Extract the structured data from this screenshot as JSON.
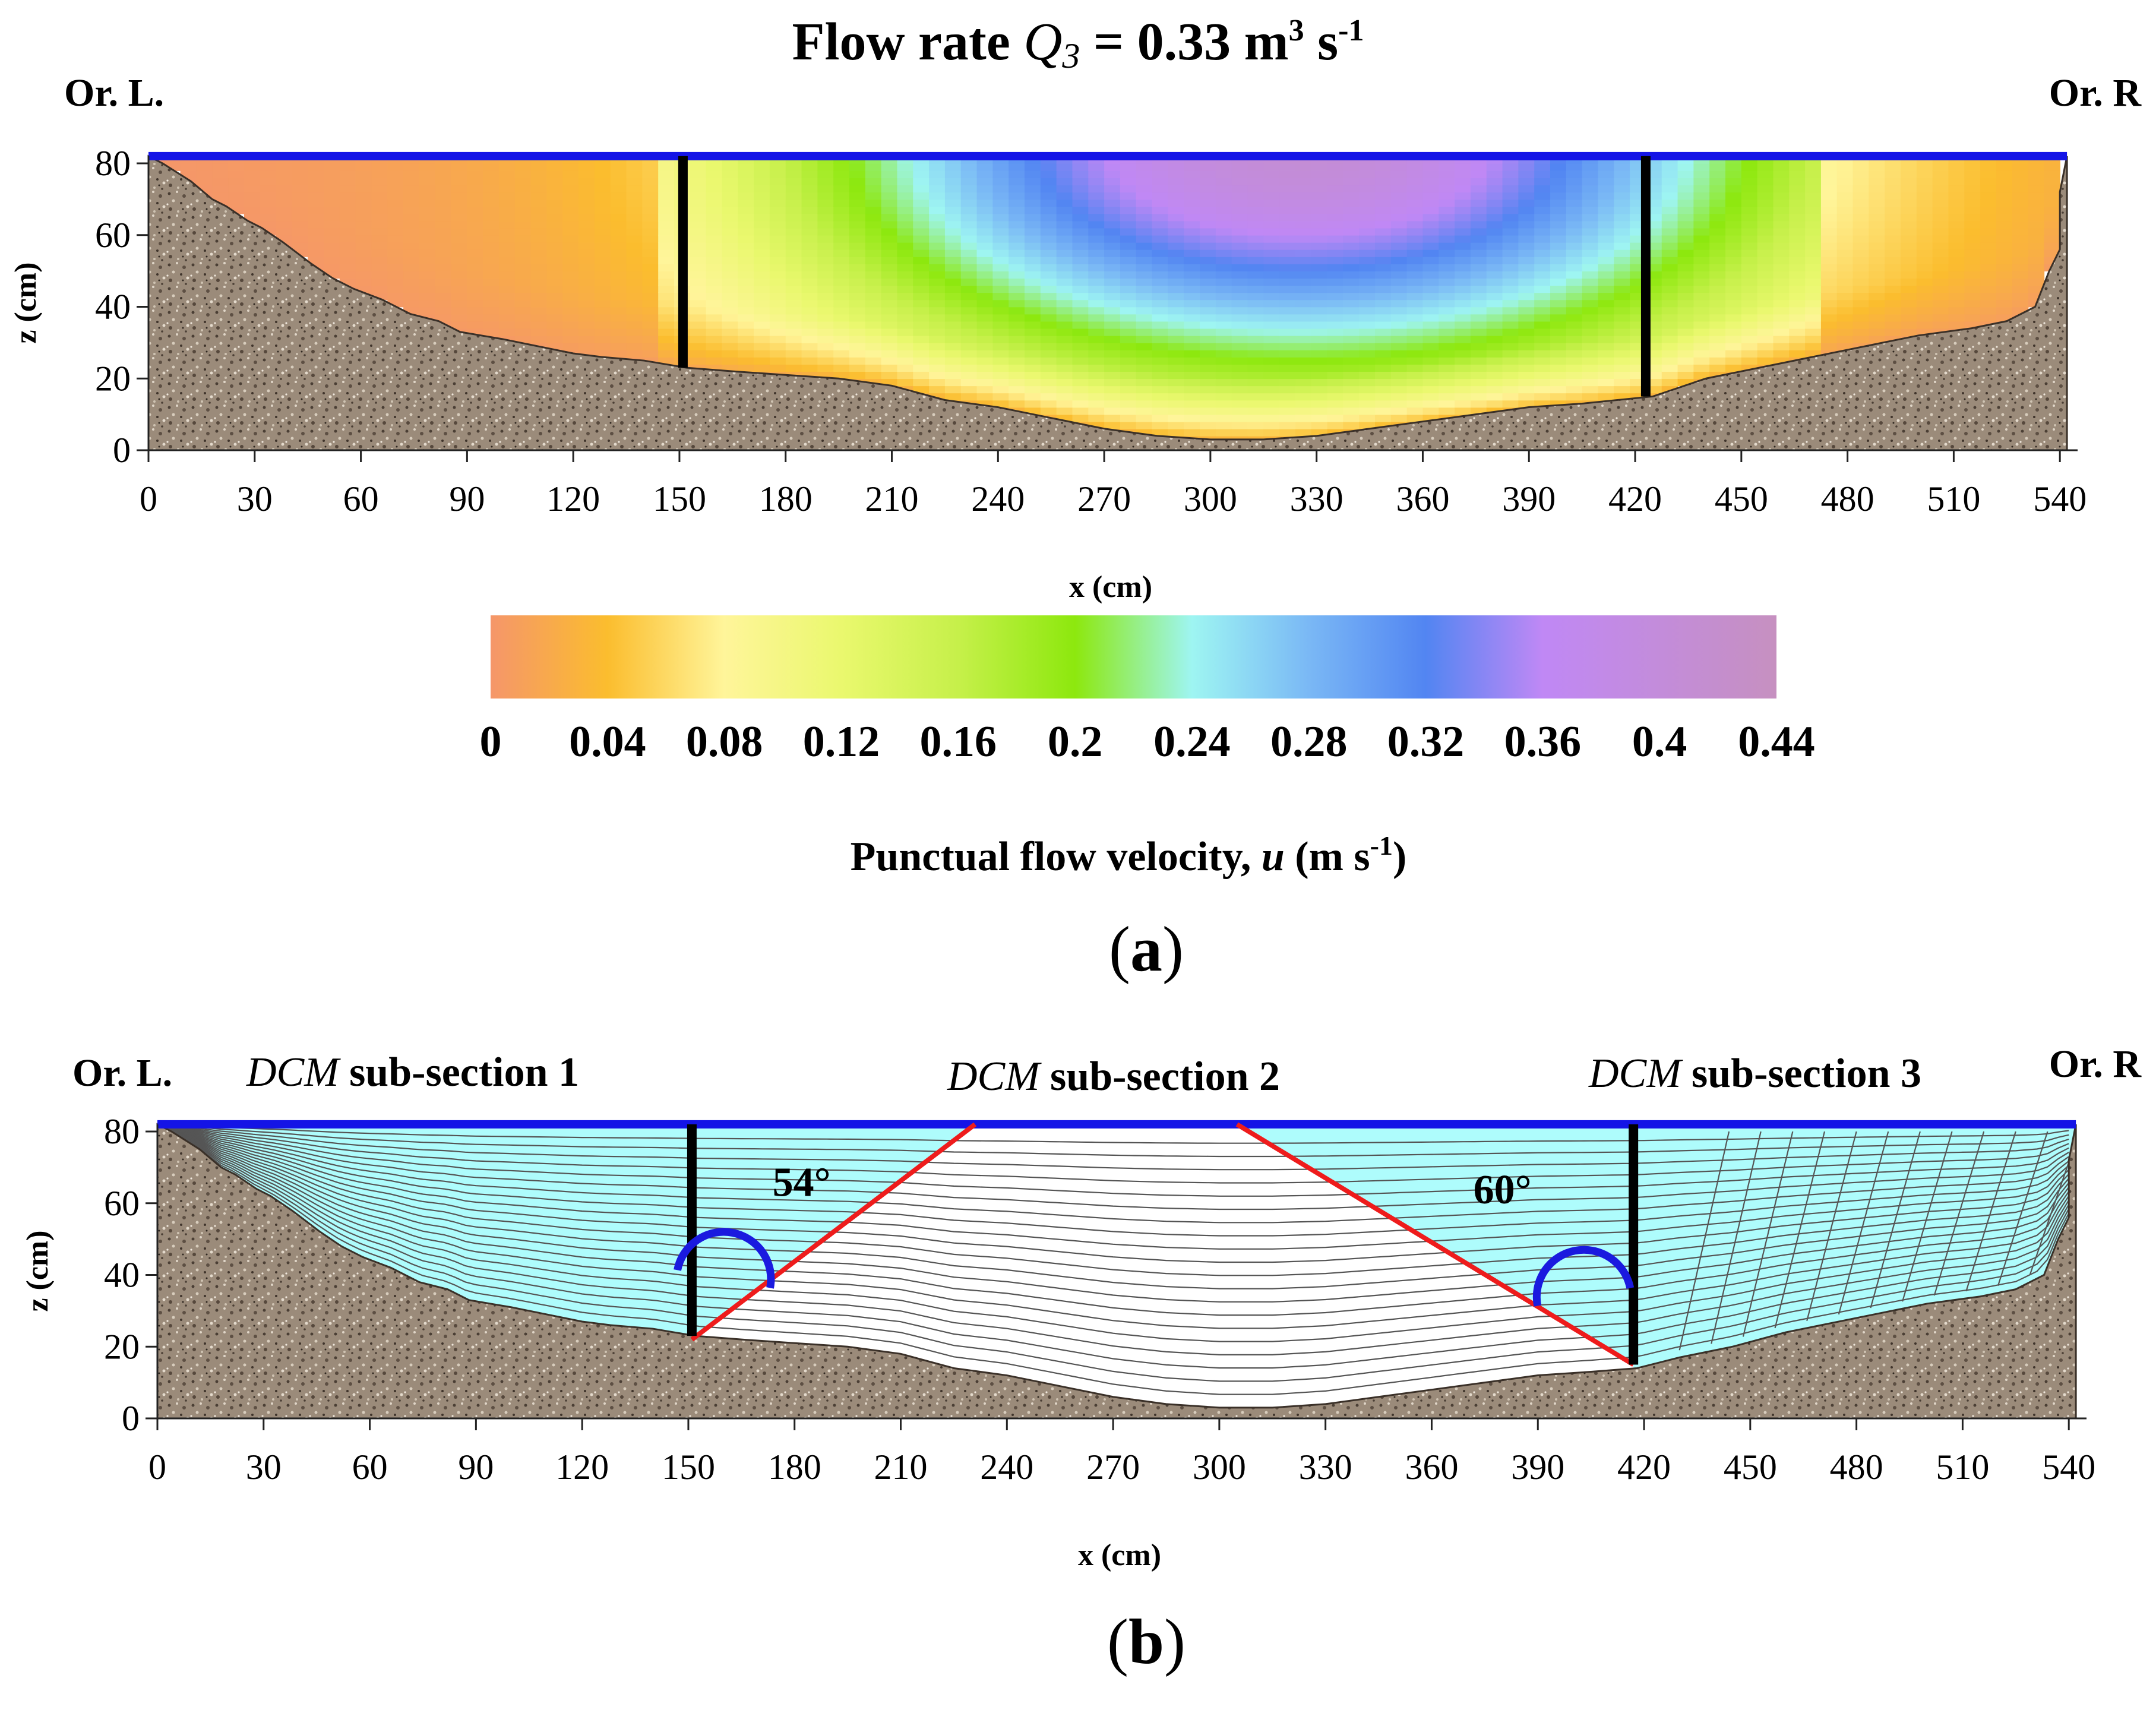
{
  "figure": {
    "title_prefix": "Flow rate ",
    "title_var": "Q",
    "title_sub": "3",
    "title_eq": " = 0.33",
    "title_unit_m": " m",
    "title_unit_m_exp": "3",
    "title_unit_s": " s",
    "title_unit_s_exp": "-1"
  },
  "chart_data": [
    {
      "id": "a",
      "type": "heatmap",
      "panel_label": "a",
      "left_bank_label": "Or. L.",
      "right_bank_label": "Or. R",
      "xlabel": "x (cm)",
      "ylabel": "z (cm)",
      "xlim": [
        0,
        545
      ],
      "ylim": [
        0,
        80
      ],
      "x_ticks": [
        "0",
        "30",
        "60",
        "90",
        "120",
        "150",
        "180",
        "210",
        "240",
        "270",
        "300",
        "330",
        "360",
        "390",
        "420",
        "450",
        "480",
        "510",
        "540"
      ],
      "y_ticks": [
        "0",
        "20",
        "40",
        "60",
        "80"
      ],
      "water_surface_z": 82,
      "bed_profile": [
        [
          0,
          82
        ],
        [
          4,
          80
        ],
        [
          12,
          75
        ],
        [
          18,
          70
        ],
        [
          22,
          68
        ],
        [
          28,
          64
        ],
        [
          32,
          62
        ],
        [
          38,
          58
        ],
        [
          46,
          52
        ],
        [
          52,
          48
        ],
        [
          58,
          45
        ],
        [
          66,
          42
        ],
        [
          74,
          38
        ],
        [
          82,
          36
        ],
        [
          88,
          33
        ],
        [
          94,
          32
        ],
        [
          100,
          31
        ],
        [
          110,
          29
        ],
        [
          120,
          27
        ],
        [
          128,
          26
        ],
        [
          140,
          25
        ],
        [
          152,
          23
        ],
        [
          165,
          22
        ],
        [
          180,
          21
        ],
        [
          195,
          20
        ],
        [
          210,
          18
        ],
        [
          225,
          14
        ],
        [
          240,
          12
        ],
        [
          255,
          9
        ],
        [
          270,
          6
        ],
        [
          285,
          4
        ],
        [
          300,
          3
        ],
        [
          315,
          3
        ],
        [
          330,
          4
        ],
        [
          345,
          6
        ],
        [
          360,
          8
        ],
        [
          375,
          10
        ],
        [
          390,
          12
        ],
        [
          405,
          13
        ],
        [
          425,
          15
        ],
        [
          440,
          20
        ],
        [
          460,
          24
        ],
        [
          480,
          28
        ],
        [
          500,
          32
        ],
        [
          515,
          34
        ],
        [
          525,
          36
        ],
        [
          533,
          40
        ],
        [
          537,
          50
        ],
        [
          540,
          56
        ],
        [
          540,
          72
        ],
        [
          542,
          82
        ]
      ],
      "verticals": [
        {
          "x": 151,
          "z_bottom": 23
        },
        {
          "x": 423,
          "z_bottom": 15
        }
      ],
      "core_max_velocity": 0.41,
      "colorbar": {
        "label_prefix": "Punctual flow velocity, ",
        "label_var": "u",
        "label_unit_m": " (m s",
        "label_unit_exp": "-1",
        "label_unit_close": ")",
        "ticks": [
          "0",
          "0.04",
          "0.08",
          "0.12",
          "0.16",
          "0.2",
          "0.24",
          "0.28",
          "0.32",
          "0.36",
          "0.4",
          "0.44"
        ],
        "range": [
          0,
          0.44
        ],
        "stops": [
          {
            "v": 0.0,
            "color": "#f5966a"
          },
          {
            "v": 0.04,
            "color": "#fbbd2e"
          },
          {
            "v": 0.08,
            "color": "#fff59a"
          },
          {
            "v": 0.12,
            "color": "#eaf86e"
          },
          {
            "v": 0.16,
            "color": "#c6f04a"
          },
          {
            "v": 0.2,
            "color": "#8de80e"
          },
          {
            "v": 0.24,
            "color": "#9ef5f2"
          },
          {
            "v": 0.28,
            "color": "#7ab8f5"
          },
          {
            "v": 0.32,
            "color": "#5285f2"
          },
          {
            "v": 0.36,
            "color": "#c088f5"
          },
          {
            "v": 0.44,
            "color": "#c690c0"
          }
        ]
      }
    },
    {
      "id": "b",
      "type": "contour",
      "panel_label": "b",
      "left_bank_label": "Or. L.",
      "right_bank_label": "Or. R",
      "xlabel": "x (cm)",
      "ylabel": "z (cm)",
      "xlim": [
        0,
        545
      ],
      "ylim": [
        0,
        80
      ],
      "x_ticks": [
        "0",
        "30",
        "60",
        "90",
        "120",
        "150",
        "180",
        "210",
        "240",
        "270",
        "300",
        "330",
        "360",
        "390",
        "420",
        "450",
        "480",
        "510",
        "540"
      ],
      "y_ticks": [
        "0",
        "20",
        "40",
        "60",
        "80"
      ],
      "water_surface_z": 82,
      "bed_profile": [
        [
          0,
          82
        ],
        [
          4,
          80
        ],
        [
          12,
          75
        ],
        [
          18,
          70
        ],
        [
          22,
          68
        ],
        [
          28,
          64
        ],
        [
          32,
          62
        ],
        [
          38,
          58
        ],
        [
          46,
          52
        ],
        [
          52,
          48
        ],
        [
          58,
          45
        ],
        [
          66,
          42
        ],
        [
          74,
          38
        ],
        [
          82,
          36
        ],
        [
          88,
          33
        ],
        [
          94,
          32
        ],
        [
          100,
          31
        ],
        [
          110,
          29
        ],
        [
          120,
          27
        ],
        [
          128,
          26
        ],
        [
          140,
          25
        ],
        [
          152,
          23
        ],
        [
          165,
          22
        ],
        [
          180,
          21
        ],
        [
          195,
          20
        ],
        [
          210,
          18
        ],
        [
          225,
          14
        ],
        [
          240,
          12
        ],
        [
          255,
          9
        ],
        [
          270,
          6
        ],
        [
          285,
          4
        ],
        [
          300,
          3
        ],
        [
          315,
          3
        ],
        [
          330,
          4
        ],
        [
          345,
          6
        ],
        [
          360,
          8
        ],
        [
          375,
          10
        ],
        [
          390,
          12
        ],
        [
          405,
          13
        ],
        [
          418,
          14
        ],
        [
          430,
          17
        ],
        [
          445,
          20
        ],
        [
          460,
          24
        ],
        [
          480,
          28
        ],
        [
          500,
          32
        ],
        [
          515,
          34
        ],
        [
          525,
          36
        ],
        [
          533,
          40
        ],
        [
          537,
          50
        ],
        [
          540,
          56
        ],
        [
          540,
          72
        ],
        [
          542,
          82
        ]
      ],
      "subsections": [
        {
          "prefix": "DCM",
          "label": " sub-section 1"
        },
        {
          "prefix": "DCM",
          "label": " sub-section 2"
        },
        {
          "prefix": "DCM",
          "label": " sub-section 3"
        }
      ],
      "verticals": [
        {
          "x": 151,
          "z_bottom": 23
        },
        {
          "x": 417,
          "z_bottom": 15
        }
      ],
      "diagonals": [
        {
          "from": [
            151,
            22
          ],
          "to": [
            231,
            82
          ]
        },
        {
          "from": [
            305,
            82
          ],
          "to": [
            417,
            15
          ]
        }
      ],
      "angles": [
        {
          "label": "54°",
          "vertex": [
            151,
            22
          ],
          "arc_center": [
            160,
            43
          ],
          "label_at": [
            182,
            62
          ]
        },
        {
          "label": "60°",
          "vertex": [
            417,
            15
          ],
          "arc_center": [
            403,
            38
          ],
          "label_at": [
            380,
            60
          ]
        }
      ],
      "contour_count": 20,
      "colors": {
        "shallow": "#aefcfc",
        "deep": "#ffffff",
        "line": "#555555",
        "split": "#ee1c1c",
        "arc": "#1a1adf"
      }
    }
  ],
  "colors": {
    "water_surface": "#1414e6",
    "vertical": "#000000",
    "bed_fill": "#9b8b7a",
    "bed_dark": "#4a3e34",
    "bed_light": "#e0d6c8"
  }
}
